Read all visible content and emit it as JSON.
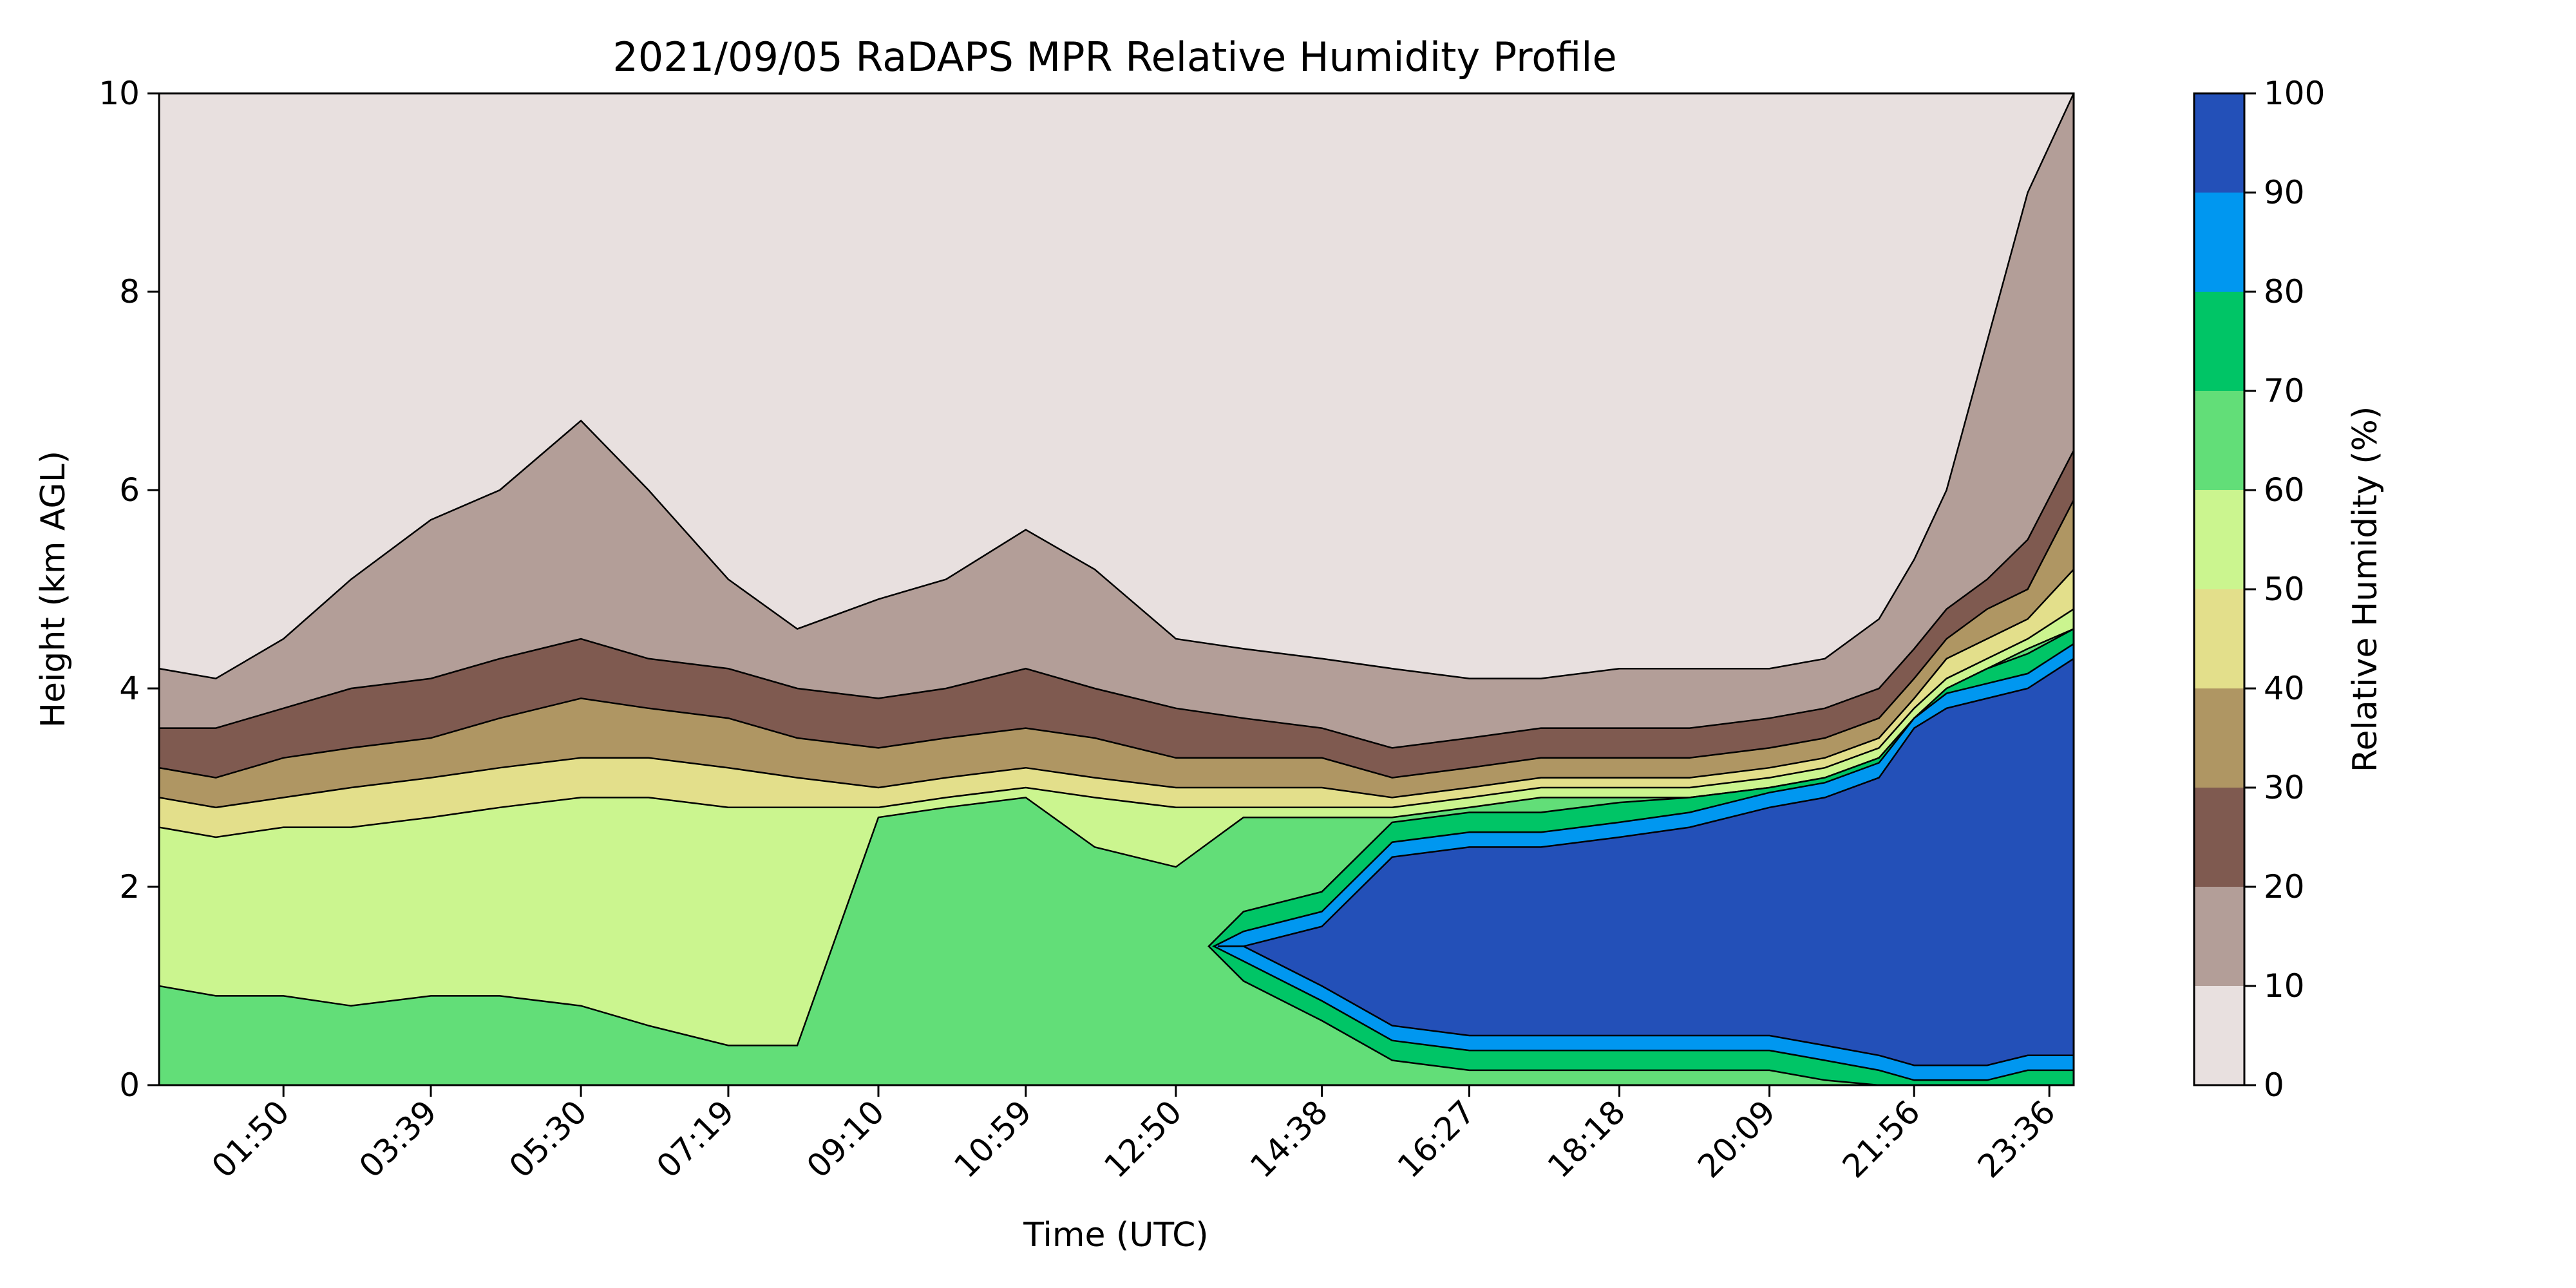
{
  "chart_data": {
    "type": "heatmap",
    "subtype": "filled-contour",
    "title": "2021/09/05 RaDAPS MPR Relative Humidity Profile",
    "xlabel": "Time (UTC)",
    "ylabel": "Height (km AGL)",
    "x_tick_labels": [
      "01:50",
      "03:39",
      "05:30",
      "07:19",
      "09:10",
      "10:59",
      "12:50",
      "14:38",
      "16:27",
      "18:18",
      "20:09",
      "21:56",
      "23:36"
    ],
    "x_tick_minutes": [
      110,
      219,
      330,
      439,
      550,
      659,
      770,
      878,
      987,
      1098,
      1209,
      1316,
      1416
    ],
    "xlim_minutes": [
      18,
      1434
    ],
    "y_ticks": [
      0,
      2,
      4,
      6,
      8,
      10
    ],
    "ylim": [
      0,
      10
    ],
    "colorbar": {
      "label": "Relative Humidity (%)",
      "ticks": [
        0,
        10,
        20,
        30,
        40,
        50,
        60,
        70,
        80,
        90,
        100
      ],
      "levels": [
        {
          "range": [
            0,
            10
          ],
          "color": "#e8e0df"
        },
        {
          "range": [
            10,
            20
          ],
          "color": "#b39e98"
        },
        {
          "range": [
            20,
            30
          ],
          "color": "#7f5a50"
        },
        {
          "range": [
            30,
            40
          ],
          "color": "#af9663"
        },
        {
          "range": [
            40,
            50
          ],
          "color": "#e3df8b"
        },
        {
          "range": [
            50,
            60
          ],
          "color": "#cbf58f"
        },
        {
          "range": [
            60,
            70
          ],
          "color": "#62de78"
        },
        {
          "range": [
            70,
            80
          ],
          "color": "#00c566"
        },
        {
          "range": [
            80,
            90
          ],
          "color": "#0097f0"
        },
        {
          "range": [
            90,
            100
          ],
          "color": "#2350b8"
        }
      ]
    },
    "contour_boundaries_km": {
      "times_minutes": [
        18,
        60,
        110,
        160,
        219,
        270,
        330,
        380,
        439,
        490,
        550,
        600,
        659,
        710,
        770,
        820,
        878,
        930,
        987,
        1040,
        1098,
        1150,
        1209,
        1250,
        1290,
        1316,
        1340,
        1370,
        1400,
        1434
      ],
      "rh_10": [
        4.2,
        4.1,
        4.5,
        5.1,
        5.7,
        6.0,
        6.7,
        6.0,
        5.1,
        4.6,
        4.9,
        5.1,
        5.6,
        5.2,
        4.5,
        4.4,
        4.3,
        4.2,
        4.1,
        4.1,
        4.2,
        4.2,
        4.2,
        4.3,
        4.7,
        5.3,
        6.0,
        7.5,
        9.0,
        10.0
      ],
      "rh_20": [
        3.6,
        3.6,
        3.8,
        4.0,
        4.1,
        4.3,
        4.5,
        4.3,
        4.2,
        4.0,
        3.9,
        4.0,
        4.2,
        4.0,
        3.8,
        3.7,
        3.6,
        3.4,
        3.5,
        3.6,
        3.6,
        3.6,
        3.7,
        3.8,
        4.0,
        4.4,
        4.8,
        5.1,
        5.5,
        6.4
      ],
      "rh_30": [
        3.2,
        3.1,
        3.3,
        3.4,
        3.5,
        3.7,
        3.9,
        3.8,
        3.7,
        3.5,
        3.4,
        3.5,
        3.6,
        3.5,
        3.3,
        3.3,
        3.3,
        3.1,
        3.2,
        3.3,
        3.3,
        3.3,
        3.4,
        3.5,
        3.7,
        4.1,
        4.5,
        4.8,
        5.0,
        5.9
      ],
      "rh_40": [
        2.9,
        2.8,
        2.9,
        3.0,
        3.1,
        3.2,
        3.3,
        3.3,
        3.2,
        3.1,
        3.0,
        3.1,
        3.2,
        3.1,
        3.0,
        3.0,
        3.0,
        2.9,
        3.0,
        3.1,
        3.1,
        3.1,
        3.2,
        3.3,
        3.5,
        3.9,
        4.3,
        4.5,
        4.7,
        5.2
      ],
      "rh_50": [
        2.6,
        2.5,
        2.6,
        2.6,
        2.7,
        2.8,
        2.9,
        2.9,
        2.8,
        2.8,
        2.8,
        2.9,
        3.0,
        2.9,
        2.8,
        2.8,
        2.8,
        2.8,
        2.9,
        3.0,
        3.0,
        3.0,
        3.1,
        3.2,
        3.4,
        3.8,
        4.1,
        4.3,
        4.5,
        4.8
      ],
      "rh_60": [
        1.0,
        0.9,
        0.9,
        0.8,
        0.9,
        0.9,
        0.8,
        0.6,
        0.4,
        0.4,
        2.7,
        2.8,
        2.9,
        2.4,
        2.2,
        2.7,
        2.7,
        2.7,
        2.8,
        2.9,
        2.9,
        2.9,
        3.0,
        3.1,
        3.3,
        3.7,
        4.0,
        4.2,
        4.4,
        4.6
      ],
      "rh_90": [
        0,
        0,
        0,
        0,
        0,
        0,
        0,
        0,
        0,
        0,
        0,
        0,
        0,
        0,
        0,
        1.4,
        1.6,
        2.3,
        2.4,
        2.4,
        2.5,
        2.6,
        2.8,
        2.9,
        3.1,
        3.6,
        3.8,
        3.9,
        4.0,
        4.3
      ],
      "rh_90_bottom": [
        0,
        0,
        0,
        0,
        0,
        0,
        0,
        0,
        0,
        0,
        0,
        0,
        0,
        0,
        0,
        1.4,
        1.0,
        0.6,
        0.5,
        0.5,
        0.5,
        0.5,
        0.5,
        0.4,
        0.3,
        0.2,
        0.2,
        0.2,
        0.3,
        0.3
      ]
    }
  }
}
